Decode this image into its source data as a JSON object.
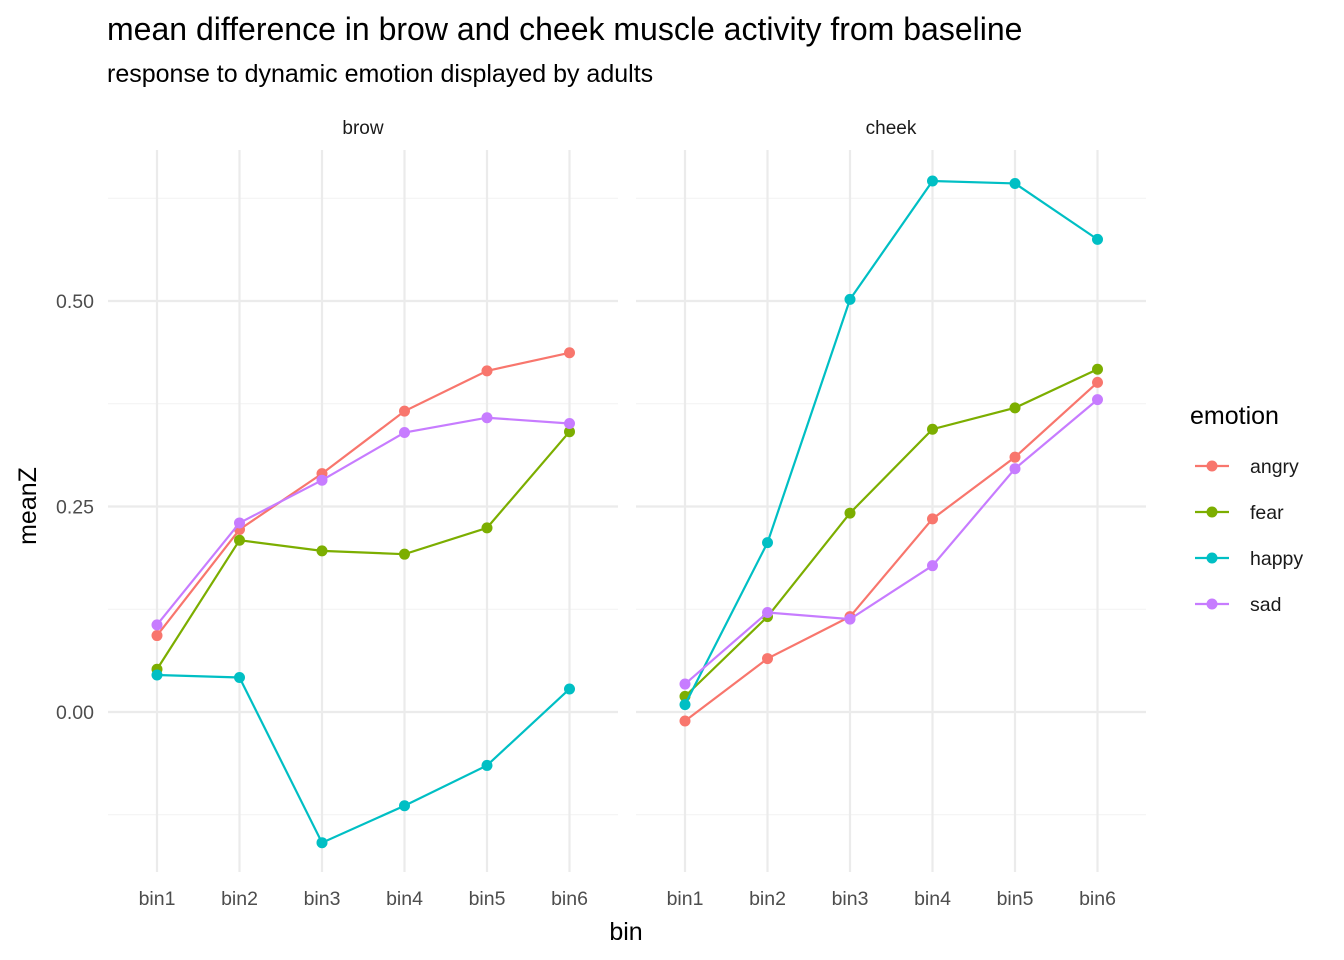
{
  "chart_data": {
    "type": "line",
    "title": "mean difference in brow and cheek muscle activity from baseline",
    "subtitle": "response to dynamic emotion displayed by adults",
    "xlabel": "bin",
    "ylabel": "meanZ",
    "categories": [
      "bin1",
      "bin2",
      "bin3",
      "bin4",
      "bin5",
      "bin6"
    ],
    "ylim": [
      -0.19,
      0.68
    ],
    "yticks": [
      0.0,
      0.25,
      0.5
    ],
    "ytick_labels": [
      "0.00",
      "0.25",
      "0.50"
    ],
    "grid": true,
    "legend": {
      "title": "emotion",
      "position": "right",
      "entries": [
        {
          "name": "angry",
          "color": "#F8766D"
        },
        {
          "name": "fear",
          "color": "#7CAE00"
        },
        {
          "name": "happy",
          "color": "#00BFC4"
        },
        {
          "name": "sad",
          "color": "#C77CFF"
        }
      ]
    },
    "panels": [
      {
        "label": "brow",
        "series": [
          {
            "name": "angry",
            "values": [
              0.093,
              0.222,
              0.29,
              0.366,
              0.415,
              0.437
            ]
          },
          {
            "name": "fear",
            "values": [
              0.052,
              0.209,
              0.196,
              0.192,
              0.224,
              0.341
            ]
          },
          {
            "name": "happy",
            "values": [
              0.045,
              0.042,
              -0.159,
              -0.114,
              -0.065,
              0.028
            ]
          },
          {
            "name": "sad",
            "values": [
              0.106,
              0.23,
              0.282,
              0.34,
              0.358,
              0.351
            ]
          }
        ]
      },
      {
        "label": "cheek",
        "series": [
          {
            "name": "angry",
            "values": [
              -0.011,
              0.065,
              0.116,
              0.235,
              0.31,
              0.401
            ]
          },
          {
            "name": "fear",
            "values": [
              0.019,
              0.116,
              0.242,
              0.344,
              0.37,
              0.417
            ]
          },
          {
            "name": "happy",
            "values": [
              0.009,
              0.206,
              0.502,
              0.646,
              0.643,
              0.575
            ]
          },
          {
            "name": "sad",
            "values": [
              0.034,
              0.121,
              0.113,
              0.178,
              0.296,
              0.38
            ]
          }
        ]
      }
    ]
  }
}
